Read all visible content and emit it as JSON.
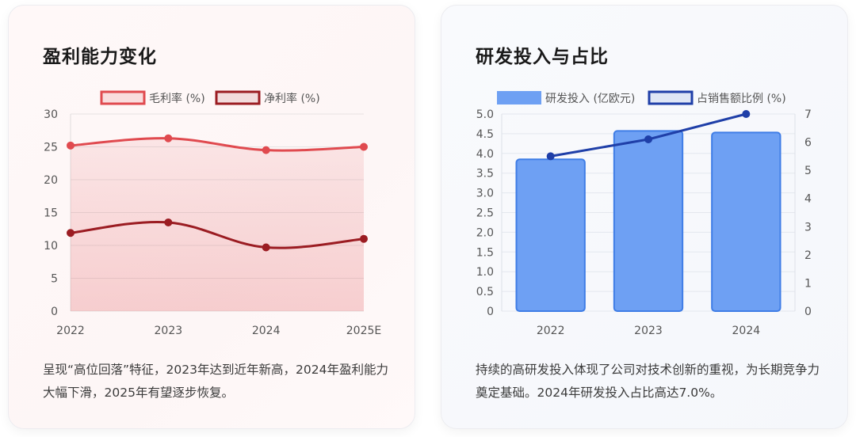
{
  "left_card": {
    "title": "盈利能力变化",
    "description": "呈现“高位回落”特征，2023年达到近年新高，2024年盈利能力大幅下滑，2025年有望逐步恢复。"
  },
  "right_card": {
    "title": "研发投入与占比",
    "description": "持续的高研发投入体现了公司对技术创新的重视，为长期竞争力奠定基础。2024年研发投入占比高达7.0%。"
  },
  "chart_data": [
    {
      "type": "line",
      "title": "盈利能力变化",
      "categories": [
        "2022",
        "2023",
        "2024",
        "2025E"
      ],
      "series": [
        {
          "name": "毛利率 (%)",
          "values": [
            25.2,
            26.3,
            24.5,
            25.0
          ],
          "color": "#e04a4f",
          "fill": true
        },
        {
          "name": "净利率 (%)",
          "values": [
            11.9,
            13.5,
            9.7,
            11.0
          ],
          "color": "#9b1c22",
          "fill": false
        }
      ],
      "ylim": [
        0,
        30
      ],
      "yticks": [
        "0",
        "5",
        "10",
        "15",
        "20",
        "25",
        "30"
      ],
      "grid": true,
      "legend": "top-center"
    },
    {
      "type": "bar",
      "title": "研发投入与占比",
      "categories": [
        "2022",
        "2023",
        "2024"
      ],
      "series": [
        {
          "name": "研发投入 (亿欧元)",
          "type": "bar",
          "axis": "left",
          "values": [
            3.85,
            4.57,
            4.53
          ],
          "color": "#6ea0f3"
        },
        {
          "name": "占销售额比例 (%)",
          "type": "line",
          "axis": "right",
          "values": [
            5.5,
            6.1,
            7.0
          ],
          "color": "#1f3fa8"
        }
      ],
      "ylim_left": [
        0,
        5.0
      ],
      "yticks_left": [
        "0",
        "0.5",
        "1.0",
        "1.5",
        "2.0",
        "2.5",
        "3.0",
        "3.5",
        "4.0",
        "4.5",
        "5.0"
      ],
      "ylim_right": [
        0,
        7
      ],
      "yticks_right": [
        "0",
        "1",
        "2",
        "3",
        "4",
        "5",
        "6",
        "7"
      ],
      "grid": true,
      "legend": "top-center"
    }
  ]
}
